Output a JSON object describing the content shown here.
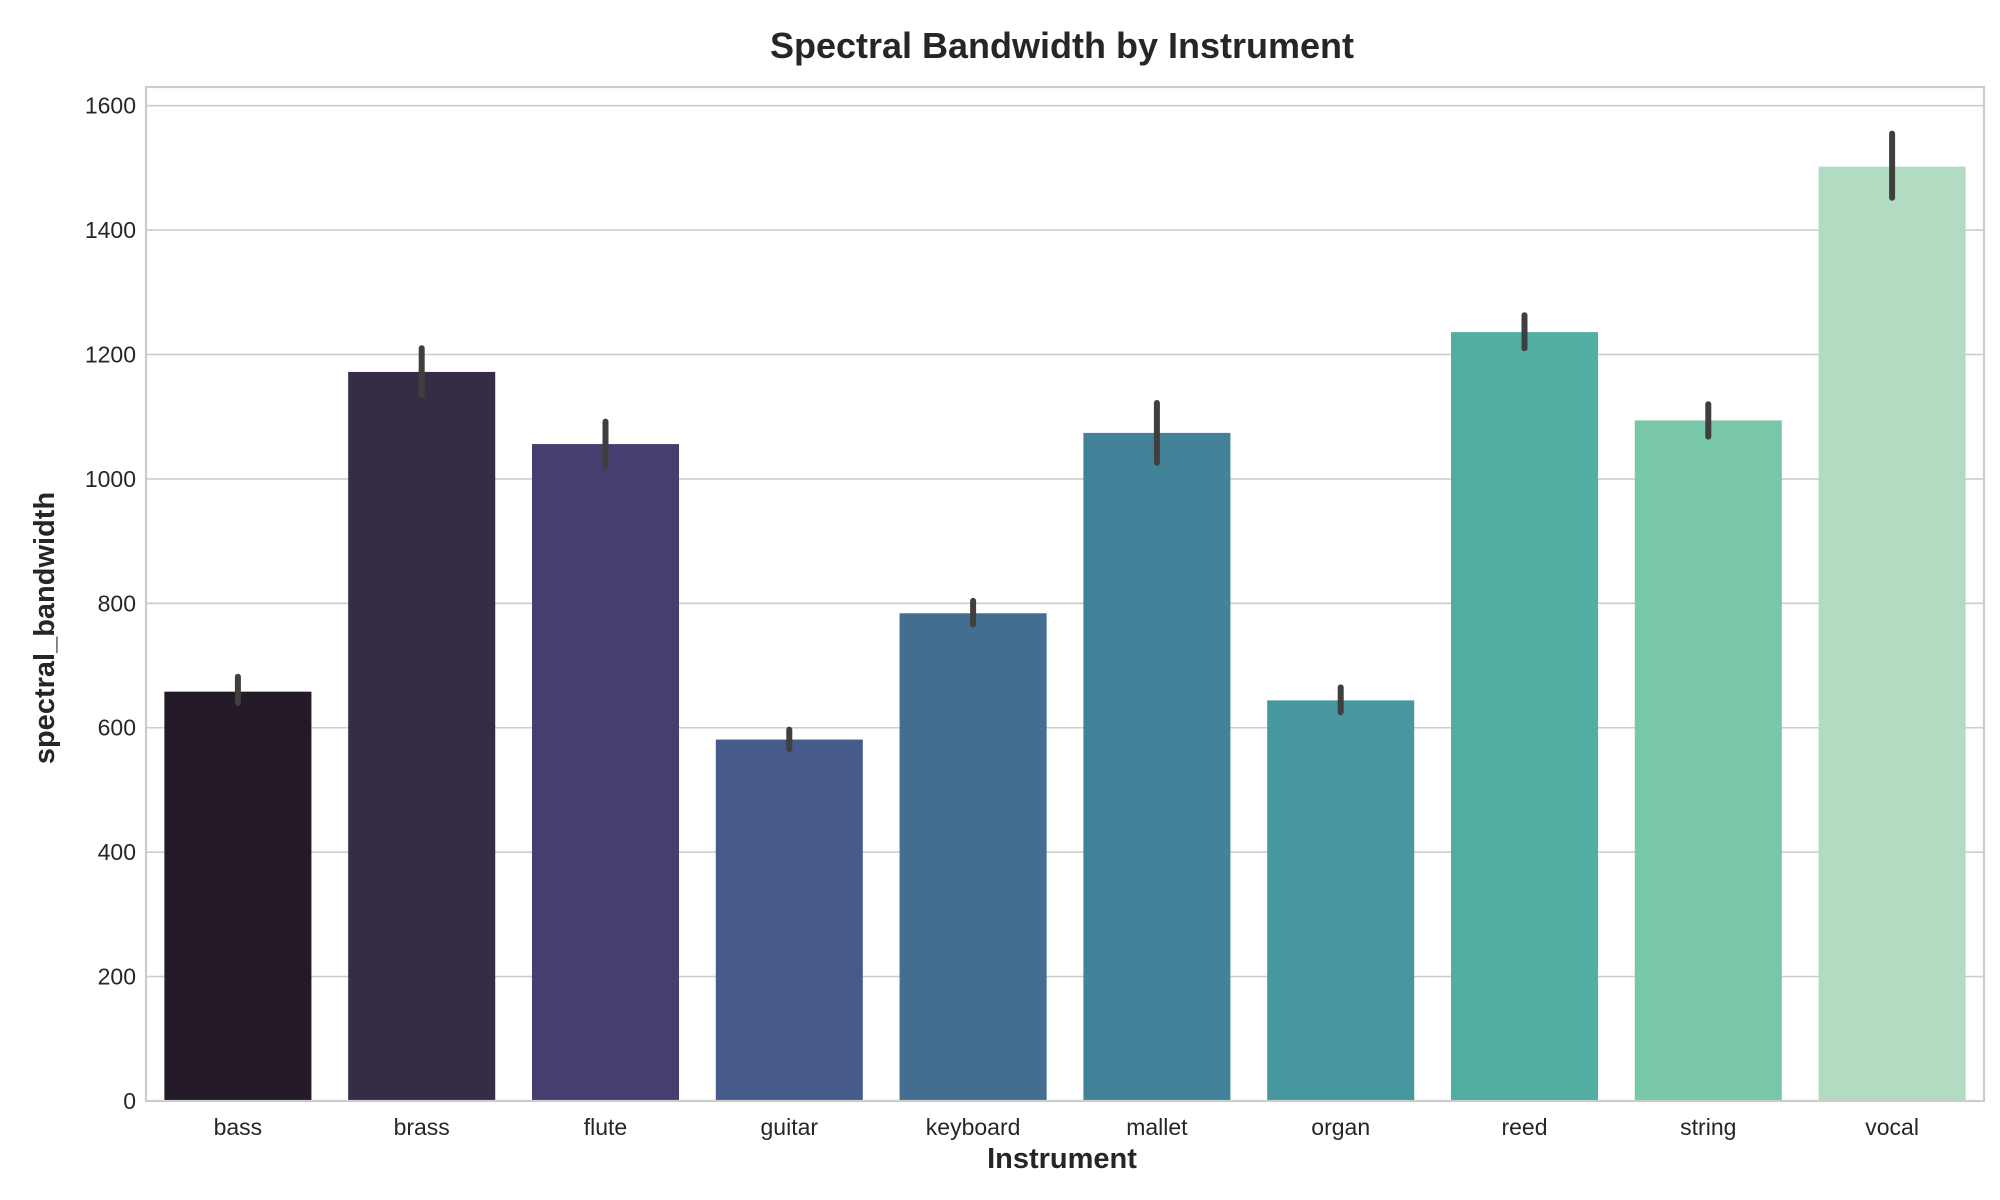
{
  "chart_data": {
    "type": "bar",
    "title": "Spectral Bandwidth by Instrument",
    "xlabel": "Instrument",
    "ylabel": "spectral_bandwidth",
    "categories": [
      "bass",
      "brass",
      "flute",
      "guitar",
      "keyboard",
      "mallet",
      "organ",
      "reed",
      "string",
      "vocal"
    ],
    "values": [
      658,
      1172,
      1056,
      581,
      784,
      1074,
      644,
      1236,
      1094,
      1502
    ],
    "error_low": [
      640,
      1135,
      1020,
      566,
      766,
      1026,
      625,
      1210,
      1068,
      1452
    ],
    "error_high": [
      682,
      1210,
      1092,
      597,
      804,
      1122,
      665,
      1263,
      1120,
      1555
    ],
    "colors": [
      "#231927",
      "#362c45",
      "#443f6e",
      "#475a8c",
      "#436e91",
      "#43839a",
      "#47979e",
      "#53aea2",
      "#79c7a9",
      "#b1dcc2"
    ],
    "ylim": [
      0,
      1630
    ],
    "yticks": [
      0,
      200,
      400,
      600,
      800,
      1000,
      1200,
      1400,
      1600
    ],
    "grid": true,
    "legend": "none"
  }
}
